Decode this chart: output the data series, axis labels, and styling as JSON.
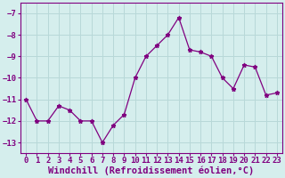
{
  "x": [
    0,
    1,
    2,
    3,
    4,
    5,
    6,
    7,
    8,
    9,
    10,
    11,
    12,
    13,
    14,
    15,
    16,
    17,
    18,
    19,
    20,
    21,
    22,
    23
  ],
  "y": [
    -11.0,
    -12.0,
    -12.0,
    -11.3,
    -11.5,
    -12.0,
    -12.0,
    -13.0,
    -12.2,
    -11.7,
    -10.0,
    -9.0,
    -8.5,
    -8.0,
    -7.2,
    -8.7,
    -8.8,
    -9.0,
    -10.0,
    -10.5,
    -9.4,
    -9.5,
    -10.8,
    -10.7
  ],
  "line_color": "#800080",
  "marker": "*",
  "marker_size": 3.5,
  "background_color": "#d5eeed",
  "grid_color": "#b8d8d8",
  "xlabel": "Windchill (Refroidissement éolien,°C)",
  "xlabel_fontsize": 7.5,
  "tick_fontsize": 6.5,
  "tick_color": "#800080",
  "ylim": [
    -13.5,
    -6.5
  ],
  "xlim": [
    -0.5,
    23.5
  ],
  "yticks": [
    -13,
    -12,
    -11,
    -10,
    -9,
    -8,
    -7
  ],
  "xticks": [
    0,
    1,
    2,
    3,
    4,
    5,
    6,
    7,
    8,
    9,
    10,
    11,
    12,
    13,
    14,
    15,
    16,
    17,
    18,
    19,
    20,
    21,
    22,
    23
  ]
}
